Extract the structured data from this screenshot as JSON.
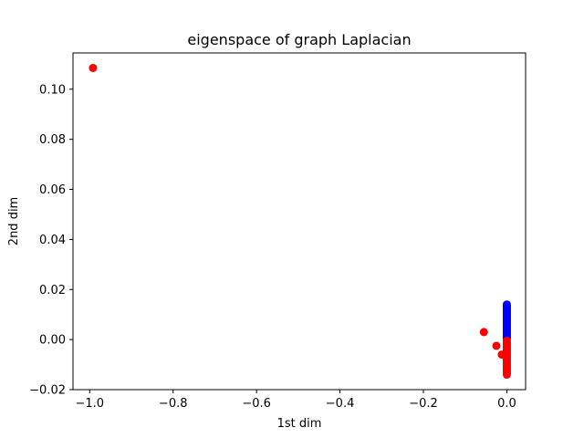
{
  "chart_data": {
    "type": "scatter",
    "title": "eigenspace of graph Laplacian",
    "xlabel": "1st dim",
    "ylabel": "2nd dim",
    "xlim": [
      -1.04,
      0.045
    ],
    "ylim": [
      -0.02,
      0.1145
    ],
    "xticks": [
      -1.0,
      -0.8,
      -0.6,
      -0.4,
      -0.2,
      0.0
    ],
    "xtick_labels": [
      "−1.0",
      "−0.8",
      "−0.6",
      "−0.4",
      "−0.2",
      "0.0"
    ],
    "yticks": [
      -0.02,
      0.0,
      0.02,
      0.04,
      0.06,
      0.08,
      0.1
    ],
    "ytick_labels": [
      "−0.02",
      "0.00",
      "0.02",
      "0.04",
      "0.06",
      "0.08",
      "0.10"
    ],
    "grid": false,
    "series": [
      {
        "color": "#0000ff",
        "points": [
          [
            0.0,
            0.0005
          ],
          [
            0.0,
            0.001
          ],
          [
            0.0,
            0.0015
          ],
          [
            0.0,
            0.002
          ],
          [
            0.0,
            0.0025
          ],
          [
            0.0,
            0.003
          ],
          [
            0.0,
            0.0035
          ],
          [
            0.0,
            0.004
          ],
          [
            0.0,
            0.0045
          ],
          [
            0.0,
            0.005
          ],
          [
            0.0,
            0.0055
          ],
          [
            0.0,
            0.006
          ],
          [
            0.0,
            0.0065
          ],
          [
            0.0,
            0.007
          ],
          [
            0.0,
            0.0075
          ],
          [
            0.0,
            0.008
          ],
          [
            0.0,
            0.0085
          ],
          [
            0.0,
            0.009
          ],
          [
            0.0,
            0.0095
          ],
          [
            0.0,
            0.01
          ],
          [
            0.0,
            0.0105
          ],
          [
            0.0,
            0.011
          ],
          [
            0.0,
            0.0115
          ],
          [
            0.0,
            0.012
          ],
          [
            0.0,
            0.0125
          ],
          [
            0.0,
            0.013
          ],
          [
            0.0,
            0.0135
          ],
          [
            0.0,
            0.014
          ]
        ]
      },
      {
        "color": "#ff0000",
        "points": [
          [
            -0.992,
            0.1085
          ],
          [
            -0.055,
            0.003
          ],
          [
            -0.025,
            -0.0025
          ],
          [
            -0.012,
            -0.006
          ],
          [
            0.0,
            -0.0005
          ],
          [
            0.0,
            -0.001
          ],
          [
            0.0,
            -0.0015
          ],
          [
            0.0,
            -0.002
          ],
          [
            0.0,
            -0.0025
          ],
          [
            0.0,
            -0.003
          ],
          [
            0.0,
            -0.0035
          ],
          [
            0.0,
            -0.004
          ],
          [
            0.0,
            -0.0045
          ],
          [
            0.0,
            -0.005
          ],
          [
            0.0,
            -0.0055
          ],
          [
            0.0,
            -0.006
          ],
          [
            0.0,
            -0.0065
          ],
          [
            0.0,
            -0.007
          ],
          [
            0.0,
            -0.0075
          ],
          [
            0.0,
            -0.008
          ],
          [
            0.0,
            -0.0085
          ],
          [
            0.0,
            -0.009
          ],
          [
            0.0,
            -0.0095
          ],
          [
            0.0,
            -0.01
          ],
          [
            0.0,
            -0.0105
          ],
          [
            0.0,
            -0.011
          ],
          [
            0.0,
            -0.0115
          ],
          [
            0.0,
            -0.012
          ],
          [
            0.0,
            -0.0125
          ],
          [
            0.0,
            -0.013
          ],
          [
            0.0,
            -0.0135
          ],
          [
            0.0,
            -0.014
          ]
        ]
      }
    ]
  }
}
